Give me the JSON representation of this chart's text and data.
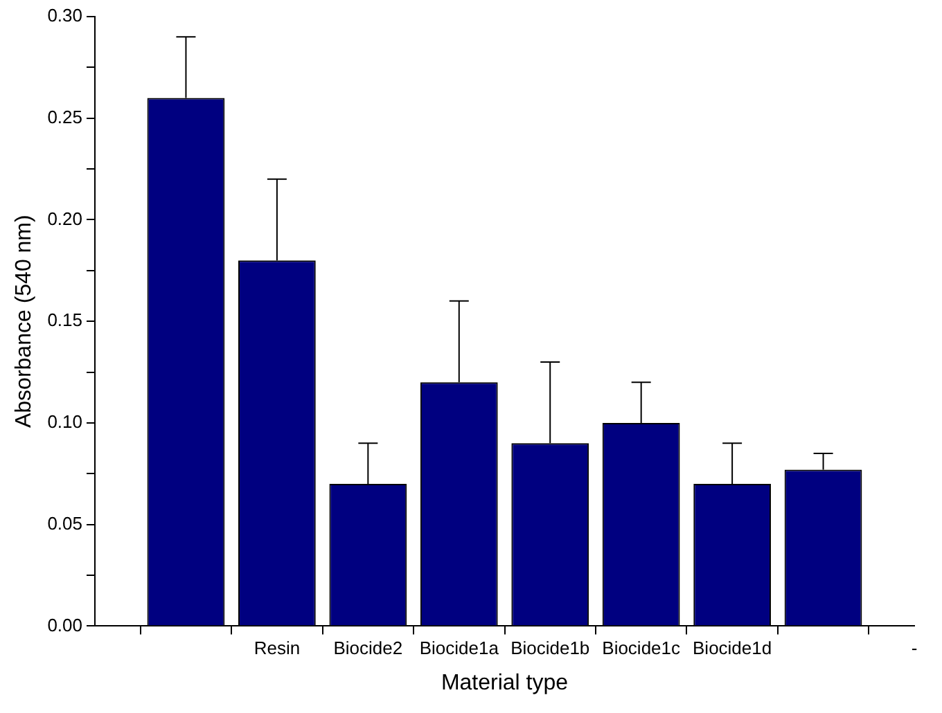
{
  "chart_data": {
    "type": "bar",
    "xlabel": "Material type",
    "ylabel": "Absorbance (540 nm)",
    "categories": [
      null,
      null,
      "Resin",
      "Biocide2",
      "Biocide1a",
      "Biocide1b",
      "Biocide1c",
      "Biocide1d",
      null,
      "-"
    ],
    "values": [
      null,
      0.26,
      0.18,
      0.07,
      0.12,
      0.09,
      0.1,
      0.07,
      0.077,
      null
    ],
    "errors": [
      null,
      [
        0.26,
        0.29
      ],
      [
        0.18,
        0.22
      ],
      [
        0.07,
        0.09
      ],
      [
        0.12,
        0.16
      ],
      [
        0.09,
        0.13
      ],
      [
        0.1,
        0.12
      ],
      [
        0.07,
        0.09
      ],
      [
        0.077,
        0.085
      ],
      null
    ],
    "color": "#000080",
    "ylim": [
      0,
      0.3
    ],
    "yticks": [
      {
        "value": 0,
        "label": "0.00"
      },
      {
        "value": 0.025,
        "label": null
      },
      0.05,
      {
        "value": 0.075,
        "label": null
      },
      {
        "value": 0.1,
        "label": "0.10"
      },
      {
        "value": 0.125,
        "label": null
      },
      0.15,
      {
        "value": 0.175,
        "label": null
      },
      {
        "value": 0.2,
        "label": "0.20"
      },
      {
        "value": 0.225,
        "label": null
      },
      0.25,
      {
        "value": 0.275,
        "label": null
      },
      {
        "value": 0.3,
        "label": "0.30"
      }
    ],
    "grid": false,
    "legend": false
  }
}
